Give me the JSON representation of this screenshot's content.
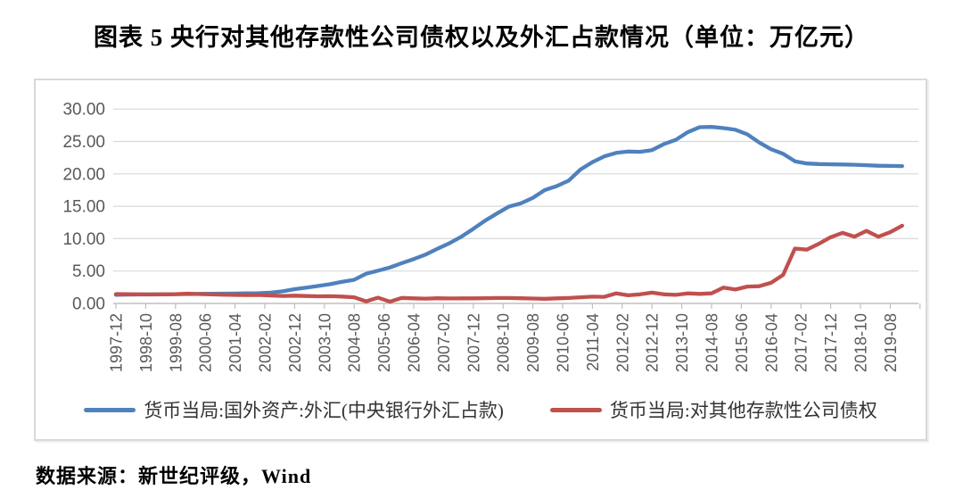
{
  "figure": {
    "title": "图表 5  央行对其他存款性公司债权以及外汇占款情况（单位：万亿元）",
    "source": "数据来源：新世纪评级，Wind"
  },
  "colors": {
    "fx_series": "#4F81BD",
    "claims_series": "#C0504D",
    "grid": "#D9D9D9",
    "axis": "#BFBFBF",
    "tick_label": "#595959",
    "card_border": "#D9D9D9"
  },
  "chart_data": {
    "type": "line",
    "title": "图表 5  央行对其他存款性公司债权以及外汇占款情况（单位：万亿元）",
    "xlabel": "",
    "ylabel": "",
    "unit": "万亿元",
    "grid": true,
    "legend_position": "bottom",
    "ylim": [
      0,
      30
    ],
    "ytick_step": 5,
    "y_tick_labels": [
      "0.00",
      "5.00",
      "10.00",
      "15.00",
      "20.00",
      "25.00",
      "30.00"
    ],
    "x_start": "1997-12",
    "x_end": "2019-12",
    "tick_interval_months": 10,
    "axis_months": 270,
    "sample_interval_months": 4,
    "x_tick_labels": [
      "1997-12",
      "1998-10",
      "1999-08",
      "2000-06",
      "2001-04",
      "2002-02",
      "2002-12",
      "2003-10",
      "2004-08",
      "2005-06",
      "2006-04",
      "2007-02",
      "2007-12",
      "2008-10",
      "2009-08",
      "2010-06",
      "2011-04",
      "2012-02",
      "2012-12",
      "2013-10",
      "2014-08",
      "2015-06",
      "2016-04",
      "2017-02",
      "2017-12",
      "2018-10",
      "2019-08"
    ],
    "series": [
      {
        "name": "货币当局:国外资产:外汇(中央银行外汇占款)",
        "color": "#4F81BD",
        "data_name": "series-line-fx-reserves",
        "values": [
          1.33,
          1.36,
          1.38,
          1.4,
          1.41,
          1.43,
          1.45,
          1.47,
          1.49,
          1.51,
          1.53,
          1.55,
          1.58,
          1.66,
          1.88,
          2.21,
          2.45,
          2.7,
          2.98,
          3.35,
          3.65,
          4.59,
          5.05,
          5.55,
          6.21,
          6.85,
          7.55,
          8.44,
          9.3,
          10.3,
          11.52,
          12.8,
          13.9,
          14.96,
          15.45,
          16.3,
          17.51,
          18.1,
          18.95,
          20.68,
          21.8,
          22.7,
          23.24,
          23.45,
          23.4,
          23.67,
          24.6,
          25.25,
          26.43,
          27.2,
          27.25,
          27.07,
          26.8,
          26.1,
          24.85,
          23.8,
          23.1,
          21.94,
          21.6,
          21.51,
          21.48,
          21.45,
          21.4,
          21.33,
          21.25,
          21.23,
          21.2
        ]
      },
      {
        "name": "货币当局:对其他存款性公司债权",
        "color": "#C0504D",
        "data_name": "series-line-claims",
        "values": [
          1.44,
          1.43,
          1.41,
          1.38,
          1.41,
          1.43,
          1.52,
          1.44,
          1.4,
          1.35,
          1.31,
          1.29,
          1.31,
          1.22,
          1.16,
          1.2,
          1.14,
          1.1,
          1.12,
          1.06,
          0.95,
          0.32,
          0.9,
          0.28,
          0.85,
          0.78,
          0.74,
          0.8,
          0.77,
          0.79,
          0.79,
          0.81,
          0.84,
          0.84,
          0.8,
          0.76,
          0.72,
          0.78,
          0.84,
          0.95,
          1.05,
          1.02,
          1.55,
          1.25,
          1.4,
          1.67,
          1.4,
          1.32,
          1.55,
          1.48,
          1.55,
          2.45,
          2.15,
          2.6,
          2.66,
          3.2,
          4.4,
          8.47,
          8.3,
          9.2,
          10.22,
          10.9,
          10.3,
          11.2,
          10.3,
          11.0,
          12.0
        ]
      }
    ]
  },
  "legend": {
    "items": [
      {
        "label": "货币当局:国外资产:外汇(中央银行外汇占款)"
      },
      {
        "label": "货币当局:对其他存款性公司债权"
      }
    ]
  }
}
